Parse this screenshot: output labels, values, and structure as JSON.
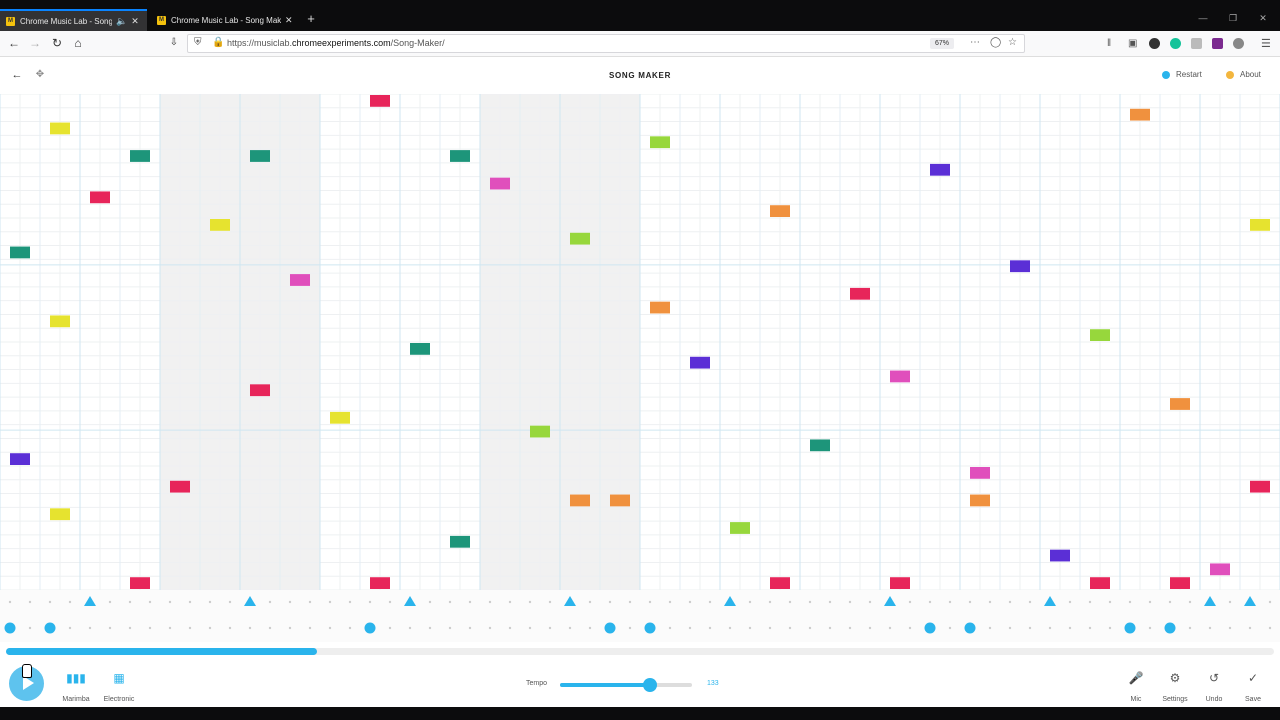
{
  "browser": {
    "tabs": [
      {
        "title": "Chrome Music Lab - Song Maker",
        "favicon": "M",
        "active": true,
        "audio_icon": "speaker-icon"
      },
      {
        "title": "Chrome Music Lab - Song Maker",
        "favicon": "M",
        "active": false
      }
    ],
    "new_tab_label": "+",
    "url_prefix": "https://musiclab.",
    "url_domain": "chromeexperiments.com",
    "url_path": "/Song-Maker/",
    "zoom": "67%",
    "accent": "#0a84ff"
  },
  "app": {
    "title": "SONG MAKER",
    "restart_label": "Restart",
    "about_label": "About",
    "restart_color": "#2ab4ec",
    "about_color": "#f3b63e"
  },
  "grid": {
    "columns": 32,
    "rows": 36,
    "beat_group": 4,
    "bar_length": 8,
    "bar_shading": [
      false,
      false,
      false,
      false,
      true,
      true,
      true,
      true,
      false,
      false,
      false,
      false,
      true,
      true,
      true,
      true
    ],
    "row_colors": [
      "#e7255a",
      "#f0913e",
      "#e6e32f",
      "#97d73c",
      "#1d957a",
      "#5b2fd6",
      "#e04fbc"
    ],
    "pattern_notes": [
      [
        0,
        26
      ],
      [
        0,
        11
      ],
      [
        1,
        2
      ],
      [
        1,
        16
      ],
      [
        1,
        30
      ],
      [
        2,
        7
      ],
      [
        3,
        4
      ],
      [
        4,
        28
      ],
      [
        5,
        9
      ],
      [
        6,
        21
      ],
      [
        7,
        13
      ],
      [
        8,
        23
      ],
      [
        9,
        0
      ],
      [
        10,
        18
      ],
      [
        11,
        32
      ],
      [
        12,
        6
      ],
      [
        13,
        24
      ],
      [
        14,
        10
      ],
      [
        15,
        29
      ],
      [
        16,
        15
      ],
      [
        16,
        3
      ],
      [
        17,
        19
      ],
      [
        18,
        31
      ],
      [
        19,
        8
      ],
      [
        20,
        25
      ],
      [
        21,
        14
      ],
      [
        22,
        20
      ],
      [
        23,
        5
      ],
      [
        24,
        27
      ],
      [
        25,
        12
      ],
      [
        26,
        33
      ],
      [
        27,
        17
      ],
      [
        28,
        1
      ],
      [
        29,
        22
      ],
      [
        30,
        34
      ],
      [
        31,
        9
      ],
      [
        31,
        28
      ],
      [
        3,
        35
      ],
      [
        9,
        35
      ],
      [
        19,
        35
      ],
      [
        22,
        35
      ],
      [
        27,
        35
      ],
      [
        29,
        35
      ],
      [
        6,
        4
      ],
      [
        11,
        4
      ],
      [
        14,
        29
      ],
      [
        24,
        29
      ]
    ]
  },
  "percussion": {
    "triangles": [
      2,
      6,
      10,
      14,
      18,
      22,
      26,
      30,
      31
    ],
    "circles": [
      0,
      1,
      9,
      15,
      16,
      23,
      24,
      28,
      29
    ],
    "accent": "#2ab4ec"
  },
  "playback": {
    "progress_fraction": 0.245
  },
  "controls": {
    "instrument1": "Marimba",
    "instrument2": "Electronic",
    "tempo_label": "Tempo",
    "tempo_value": "133",
    "tempo_fraction": 0.68,
    "mic_label": "Mic",
    "settings_label": "Settings",
    "undo_label": "Undo",
    "save_label": "Save"
  }
}
